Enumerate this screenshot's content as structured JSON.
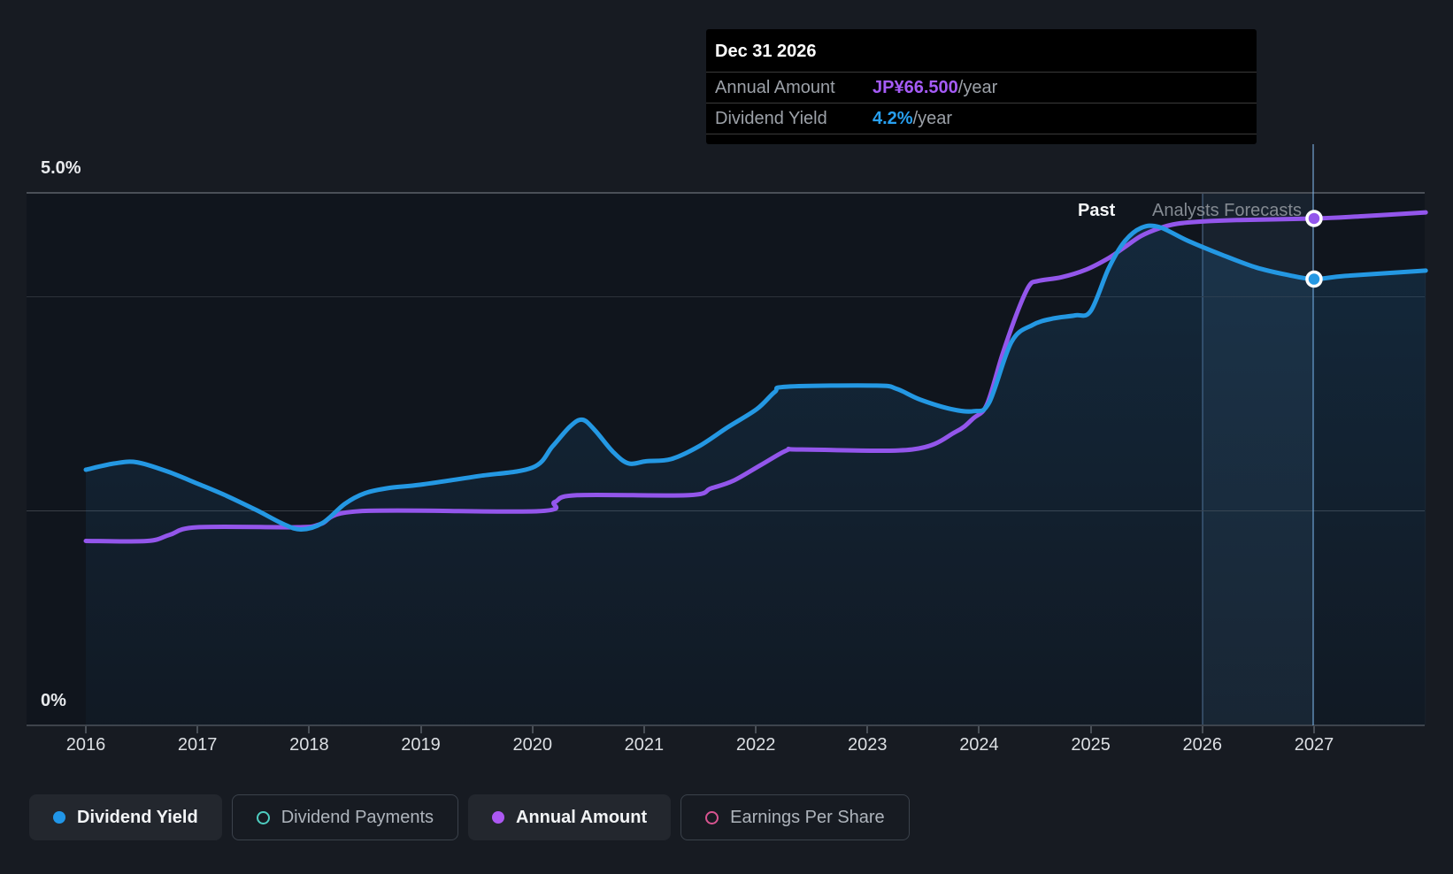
{
  "tooltip": {
    "date": "Dec 31 2026",
    "rows": [
      {
        "label": "Annual Amount",
        "value": "JP¥66.500",
        "suffix": "/year",
        "color": "#a55bf7"
      },
      {
        "label": "Dividend Yield",
        "value": "4.2%",
        "suffix": "/year",
        "color": "#28a0f0"
      }
    ]
  },
  "y_axis": {
    "top_label": "5.0%",
    "bottom_label": "0%"
  },
  "x_axis": {
    "years": [
      "2016",
      "2017",
      "2018",
      "2019",
      "2020",
      "2021",
      "2022",
      "2023",
      "2024",
      "2025",
      "2026",
      "2027"
    ]
  },
  "region_labels": {
    "past": "Past",
    "forecast": "Analysts Forecasts"
  },
  "legend": {
    "items": [
      {
        "label": "Dividend Yield",
        "marker": "dot",
        "color": "#2196e8",
        "active": true
      },
      {
        "label": "Dividend Payments",
        "marker": "ring",
        "color": "#4ecdc0",
        "active": false
      },
      {
        "label": "Annual Amount",
        "marker": "dot",
        "color": "#ac58f2",
        "active": true
      },
      {
        "label": "Earnings Per Share",
        "marker": "ring",
        "color": "#d85490",
        "active": false
      }
    ]
  },
  "colors": {
    "yield_line": "#2498e3",
    "amount_line": "#9356eb",
    "area_top": "rgba(36,130,200,0.18)",
    "area_bottom": "rgba(36,130,200,0.04)",
    "marker_stroke": "#ffffff"
  },
  "chart_data": {
    "type": "line",
    "x_ticks": [
      2016,
      2017,
      2018,
      2019,
      2020,
      2021,
      2022,
      2023,
      2024,
      2025,
      2026,
      2027
    ],
    "x_range": [
      2015.47,
      2028.0
    ],
    "ylim_pct": [
      0,
      5.0
    ],
    "gridlines_pct": [
      5.0,
      4.0,
      2.0,
      0.0
    ],
    "past_until": 2026.0,
    "highlight_band": [
      2026.0,
      2027.0
    ],
    "hover": {
      "x": 2027.0,
      "date": "Dec 31 2026",
      "dividend_yield_pct": 4.2,
      "annual_amount_jpy": 66.5
    },
    "series": [
      {
        "name": "Dividend Yield",
        "unit": "%",
        "axis": "yield",
        "points": [
          [
            2016,
            2.4
          ],
          [
            2016.26,
            2.46
          ],
          [
            2016.46,
            2.47
          ],
          [
            2016.74,
            2.38
          ],
          [
            2017,
            2.27
          ],
          [
            2017.25,
            2.16
          ],
          [
            2017.53,
            2.02
          ],
          [
            2017.77,
            1.89
          ],
          [
            2017.93,
            1.84
          ],
          [
            2018.12,
            1.9
          ],
          [
            2018.32,
            2.08
          ],
          [
            2018.5,
            2.18
          ],
          [
            2018.72,
            2.23
          ],
          [
            2019,
            2.26
          ],
          [
            2019.51,
            2.34
          ],
          [
            2020,
            2.42
          ],
          [
            2020.18,
            2.62
          ],
          [
            2020.34,
            2.81
          ],
          [
            2020.45,
            2.87
          ],
          [
            2020.56,
            2.77
          ],
          [
            2020.72,
            2.57
          ],
          [
            2020.86,
            2.46
          ],
          [
            2021.02,
            2.48
          ],
          [
            2021.24,
            2.5
          ],
          [
            2021.49,
            2.62
          ],
          [
            2021.75,
            2.8
          ],
          [
            2022.01,
            2.97
          ],
          [
            2022.17,
            3.13
          ],
          [
            2022.28,
            3.18
          ],
          [
            2023.08,
            3.19
          ],
          [
            2023.26,
            3.16
          ],
          [
            2023.47,
            3.06
          ],
          [
            2023.75,
            2.97
          ],
          [
            2023.95,
            2.95
          ],
          [
            2024.09,
            3.03
          ],
          [
            2024.29,
            3.6
          ],
          [
            2024.48,
            3.76
          ],
          [
            2024.66,
            3.82
          ],
          [
            2024.86,
            3.85
          ],
          [
            2025.0,
            3.89
          ],
          [
            2025.16,
            4.29
          ],
          [
            2025.3,
            4.54
          ],
          [
            2025.45,
            4.67
          ],
          [
            2025.61,
            4.68
          ],
          [
            2025.87,
            4.55
          ],
          [
            2026.17,
            4.42
          ],
          [
            2026.48,
            4.3
          ],
          [
            2026.76,
            4.23
          ],
          [
            2027.0,
            4.19
          ],
          [
            2027.28,
            4.22
          ],
          [
            2028.0,
            4.27
          ]
        ]
      },
      {
        "name": "Annual Amount",
        "unit": "JP¥/year",
        "axis": "amount",
        "points": [
          [
            2016,
            24.2
          ],
          [
            2016.55,
            24.2
          ],
          [
            2016.75,
            25.0
          ],
          [
            2017,
            26.0
          ],
          [
            2017.9,
            26.0
          ],
          [
            2018.1,
            26.4
          ],
          [
            2018.45,
            28.1
          ],
          [
            2020.05,
            28.1
          ],
          [
            2020.2,
            29.3
          ],
          [
            2020.4,
            30.2
          ],
          [
            2021.4,
            30.2
          ],
          [
            2021.6,
            31.1
          ],
          [
            2021.8,
            32.1
          ],
          [
            2022.05,
            34.2
          ],
          [
            2022.28,
            36.1
          ],
          [
            2022.4,
            36.2
          ],
          [
            2023.4,
            36.2
          ],
          [
            2023.79,
            38.5
          ],
          [
            2023.95,
            40.3
          ],
          [
            2024.07,
            42.1
          ],
          [
            2024.21,
            48.7
          ],
          [
            2024.35,
            54.5
          ],
          [
            2024.45,
            57.7
          ],
          [
            2024.53,
            58.3
          ],
          [
            2024.74,
            58.8
          ],
          [
            2024.96,
            59.8
          ],
          [
            2025.16,
            61.3
          ],
          [
            2025.3,
            62.7
          ],
          [
            2025.45,
            64.2
          ],
          [
            2025.61,
            65.2
          ],
          [
            2025.77,
            65.8
          ],
          [
            2026.0,
            66.1
          ],
          [
            2026.33,
            66.3
          ],
          [
            2027.0,
            66.5
          ],
          [
            2027.44,
            66.8
          ],
          [
            2028.0,
            67.3
          ]
        ]
      }
    ]
  }
}
